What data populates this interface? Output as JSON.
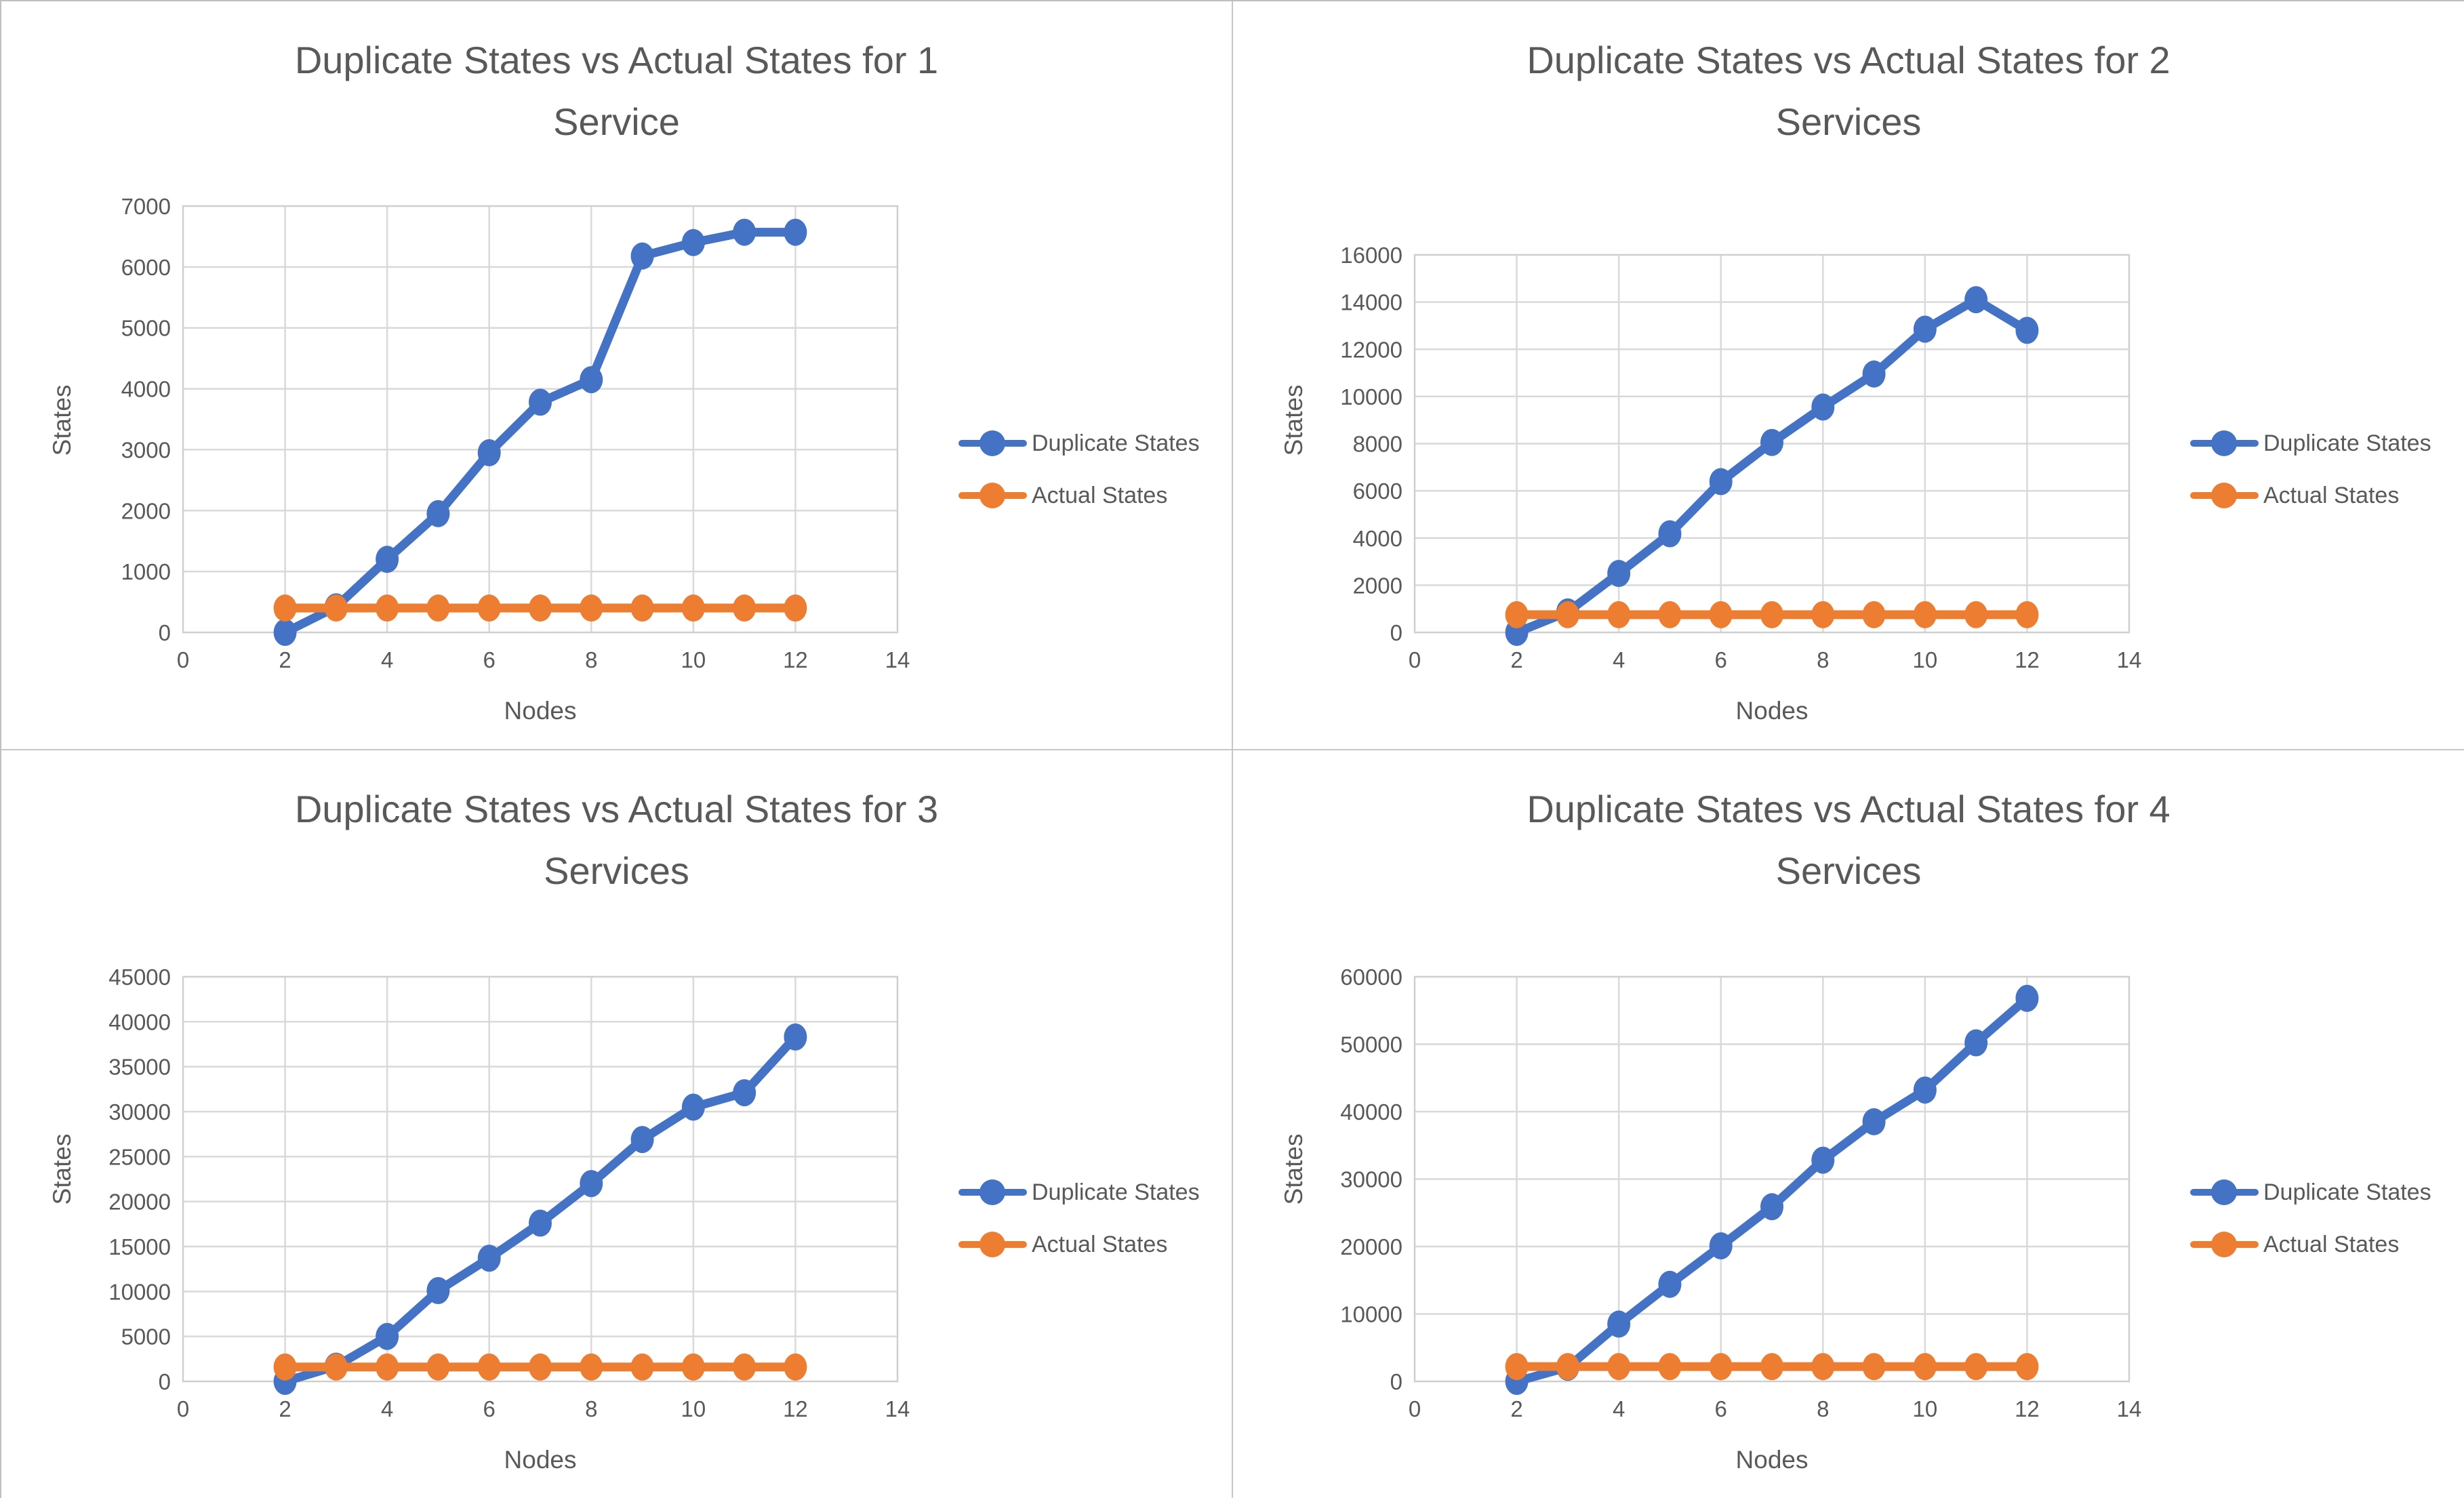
{
  "page": {
    "background": "#ffffff",
    "text_color": "#595959",
    "gridline_color": "#d9d9d9",
    "plot_border_color": "#cfcfcf"
  },
  "chart_data": [
    {
      "type": "line",
      "title": "Duplicate States vs Actual States for 1 Service",
      "xlabel": "Nodes",
      "ylabel": "States",
      "xlim": [
        0,
        14
      ],
      "xtick_step": 2,
      "ylim": [
        0,
        7000
      ],
      "ytick_step": 1000,
      "grid": true,
      "legend_position": "right",
      "x": [
        2,
        3,
        4,
        5,
        6,
        7,
        8,
        9,
        10,
        11,
        12
      ],
      "series": [
        {
          "name": "Duplicate States",
          "color": "#4472C4",
          "values": [
            0,
            420,
            1200,
            1950,
            2950,
            3780,
            4150,
            6180,
            6400,
            6570,
            6570
          ]
        },
        {
          "name": "Actual States",
          "color": "#ED7D31",
          "values": [
            400,
            400,
            400,
            400,
            400,
            400,
            400,
            400,
            400,
            400,
            400
          ]
        }
      ]
    },
    {
      "type": "line",
      "title": "Duplicate States vs Actual States for 2 Services",
      "xlabel": "Nodes",
      "ylabel": "States",
      "xlim": [
        0,
        14
      ],
      "xtick_step": 2,
      "ylim": [
        0,
        16000
      ],
      "ytick_step": 2000,
      "grid": true,
      "legend_position": "right",
      "x": [
        2,
        3,
        4,
        5,
        6,
        7,
        8,
        9,
        10,
        11,
        12
      ],
      "series": [
        {
          "name": "Duplicate States",
          "color": "#4472C4",
          "values": [
            0,
            870,
            2500,
            4180,
            6390,
            8050,
            9550,
            10950,
            12850,
            14100,
            12800
          ]
        },
        {
          "name": "Actual States",
          "color": "#ED7D31",
          "values": [
            750,
            750,
            750,
            750,
            750,
            750,
            750,
            750,
            750,
            750,
            750
          ]
        }
      ]
    },
    {
      "type": "line",
      "title": "Duplicate States vs Actual States for 3 Services",
      "xlabel": "Nodes",
      "ylabel": "States",
      "xlim": [
        0,
        14
      ],
      "xtick_step": 2,
      "ylim": [
        0,
        45000
      ],
      "ytick_step": 5000,
      "grid": true,
      "legend_position": "right",
      "x": [
        2,
        3,
        4,
        5,
        6,
        7,
        8,
        9,
        10,
        11,
        12
      ],
      "series": [
        {
          "name": "Duplicate States",
          "color": "#4472C4",
          "values": [
            0,
            1700,
            5000,
            10100,
            13700,
            17600,
            22000,
            26900,
            30500,
            32100,
            38300
          ]
        },
        {
          "name": "Actual States",
          "color": "#ED7D31",
          "values": [
            1600,
            1600,
            1600,
            1600,
            1600,
            1600,
            1600,
            1600,
            1600,
            1600,
            1600
          ]
        }
      ]
    },
    {
      "type": "line",
      "title": "Duplicate States vs Actual States for 4 Services",
      "xlabel": "Nodes",
      "ylabel": "States",
      "xlim": [
        0,
        14
      ],
      "xtick_step": 2,
      "ylim": [
        0,
        60000
      ],
      "ytick_step": 10000,
      "grid": true,
      "legend_position": "right",
      "x": [
        2,
        3,
        4,
        5,
        6,
        7,
        8,
        9,
        10,
        11,
        12
      ],
      "series": [
        {
          "name": "Duplicate States",
          "color": "#4472C4",
          "values": [
            0,
            2100,
            8500,
            14400,
            20100,
            25900,
            32800,
            38500,
            43200,
            50200,
            56800
          ]
        },
        {
          "name": "Actual States",
          "color": "#ED7D31",
          "values": [
            2200,
            2200,
            2200,
            2200,
            2200,
            2200,
            2200,
            2200,
            2200,
            2200,
            2200
          ]
        }
      ]
    }
  ]
}
